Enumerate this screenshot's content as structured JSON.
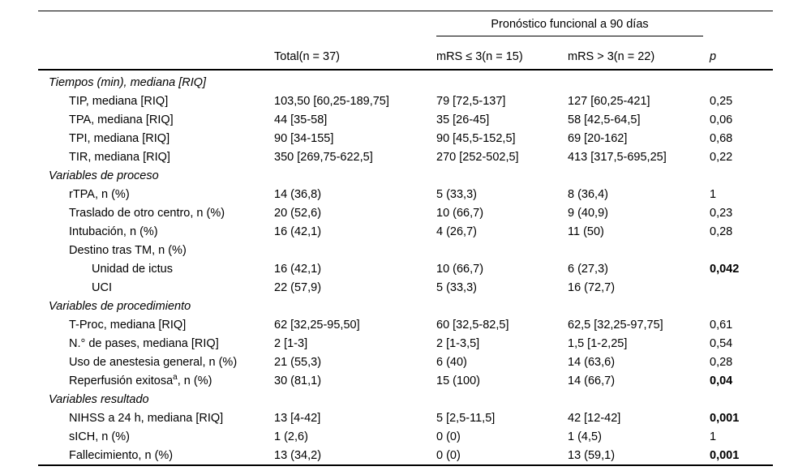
{
  "table": {
    "group_header": "Pronóstico funcional a 90 días",
    "columns": {
      "stub": "",
      "total": "Total(n = 37)",
      "mrs_le3": "mRS ≤ 3(n = 15)",
      "mrs_gt3": "mRS > 3(n = 22)",
      "p": "p"
    },
    "rows": [
      {
        "label": "Tiempos (min), mediana [RIQ]",
        "indent": 0,
        "section": true,
        "total": "",
        "mrs_le3": "",
        "mrs_gt3": "",
        "p": ""
      },
      {
        "label": "TIP, mediana [RIQ]",
        "indent": 1,
        "total": "103,50 [60,25-189,75]",
        "mrs_le3": "79 [72,5-137]",
        "mrs_gt3": "127 [60,25-421]",
        "p": "0,25"
      },
      {
        "label": "TPA, mediana [RIQ]",
        "indent": 1,
        "total": "44 [35-58]",
        "mrs_le3": "35 [26-45]",
        "mrs_gt3": "58 [42,5-64,5]",
        "p": "0,06"
      },
      {
        "label": "TPI, mediana [RIQ]",
        "indent": 1,
        "total": "90 [34-155]",
        "mrs_le3": "90 [45,5-152,5]",
        "mrs_gt3": "69 [20-162]",
        "p": "0,68"
      },
      {
        "label": "TIR, mediana [RIQ]",
        "indent": 1,
        "total": "350 [269,75-622,5]",
        "mrs_le3": "270 [252-502,5]",
        "mrs_gt3": "413 [317,5-695,25]",
        "p": "0,22"
      },
      {
        "label": "Variables de proceso",
        "indent": 0,
        "section": true,
        "total": "",
        "mrs_le3": "",
        "mrs_gt3": "",
        "p": ""
      },
      {
        "label": "rTPA, n (%)",
        "indent": 1,
        "total": "14 (36,8)",
        "mrs_le3": "5 (33,3)",
        "mrs_gt3": "8 (36,4)",
        "p": "1"
      },
      {
        "label": "Traslado de otro centro, n (%)",
        "indent": 1,
        "total": "20 (52,6)",
        "mrs_le3": "10 (66,7)",
        "mrs_gt3": "9 (40,9)",
        "p": "0,23"
      },
      {
        "label": "Intubación, n (%)",
        "indent": 1,
        "total": "16 (42,1)",
        "mrs_le3": "4 (26,7)",
        "mrs_gt3": "11 (50)",
        "p": "0,28"
      },
      {
        "label": "Destino tras TM, n (%)",
        "indent": 1,
        "total": "",
        "mrs_le3": "",
        "mrs_gt3": "",
        "p": ""
      },
      {
        "label": "Unidad de ictus",
        "indent": 2,
        "total": "16 (42,1)",
        "mrs_le3": "10 (66,7)",
        "mrs_gt3": "6 (27,3)",
        "p": "0,042",
        "p_bold": true
      },
      {
        "label": "UCI",
        "indent": 2,
        "total": "22 (57,9)",
        "mrs_le3": "5 (33,3)",
        "mrs_gt3": "16 (72,7)",
        "p": ""
      },
      {
        "label": "Variables de procedimiento",
        "indent": 0,
        "section": true,
        "total": "",
        "mrs_le3": "",
        "mrs_gt3": "",
        "p": ""
      },
      {
        "label": "T-Proc, mediana [RIQ]",
        "indent": 1,
        "total": "62 [32,25-95,50]",
        "mrs_le3": "60 [32,5-82,5]",
        "mrs_gt3": "62,5 [32,25-97,75]",
        "p": "0,61"
      },
      {
        "label": "N.° de pases, mediana [RIQ]",
        "indent": 1,
        "total": "2 [1-3]",
        "mrs_le3": "2 [1-3,5]",
        "mrs_gt3": "1,5 [1-2,25]",
        "p": "0,54"
      },
      {
        "label": "Uso de anestesia general, n (%)",
        "indent": 1,
        "total": "21 (55,3)",
        "mrs_le3": "6 (40)",
        "mrs_gt3": "14 (63,6)",
        "p": "0,28"
      },
      {
        "label": "Reperfusión exitosa",
        "label_sup": "a",
        "label_post": ", n (%)",
        "indent": 1,
        "total": "30 (81,1)",
        "mrs_le3": "15 (100)",
        "mrs_gt3": "14 (66,7)",
        "p": "0,04",
        "p_bold": true
      },
      {
        "label": "Variables resultado",
        "indent": 0,
        "section": true,
        "total": "",
        "mrs_le3": "",
        "mrs_gt3": "",
        "p": ""
      },
      {
        "label": "NIHSS a 24 h, mediana [RIQ]",
        "indent": 1,
        "total": "13 [4-42]",
        "mrs_le3": "5 [2,5-11,5]",
        "mrs_gt3": "42 [12-42]",
        "p": "0,001",
        "p_bold": true
      },
      {
        "label": "sICH, n (%)",
        "indent": 1,
        "total": "1 (2,6)",
        "mrs_le3": "0 (0)",
        "mrs_gt3": "1 (4,5)",
        "p": "1"
      },
      {
        "label": "Fallecimiento, n (%)",
        "indent": 1,
        "total": "13 (34,2)",
        "mrs_le3": "0 (0)",
        "mrs_gt3": "13 (59,1)",
        "p": "0,001",
        "p_bold": true
      }
    ]
  }
}
